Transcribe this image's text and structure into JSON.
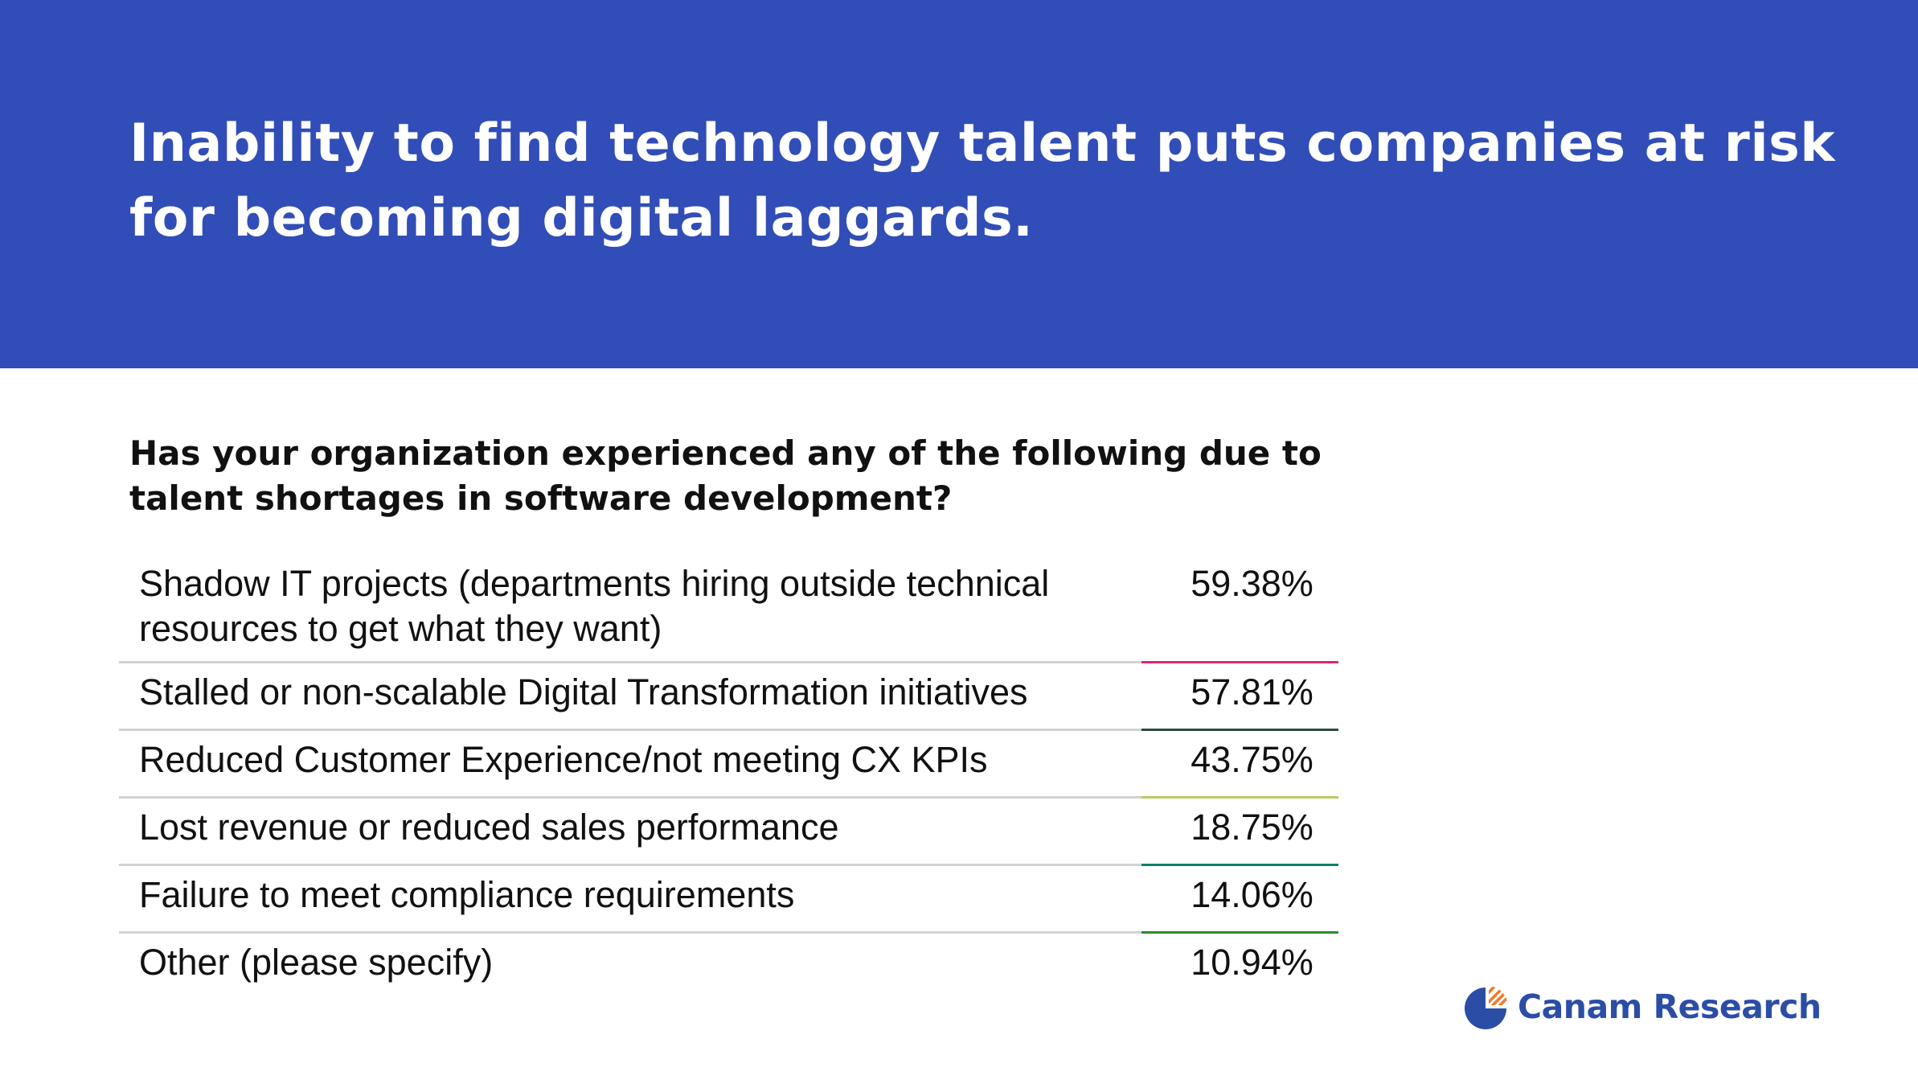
{
  "header": {
    "title": "Inability to find technology talent puts companies at risk for becoming digital laggards."
  },
  "question": "Has your organization experienced any of the following due to talent shortages in software development?",
  "chart_data": {
    "type": "table",
    "title": "Has your organization experienced any of the following due to talent shortages in software development?",
    "rows": [
      {
        "label": "Shadow IT projects (departments hiring outside technical resources to get what they want)",
        "value": "59.38%",
        "accent": "#e0267a"
      },
      {
        "label": "Stalled or non-scalable Digital Transformation initiatives",
        "value": "57.81%",
        "accent": "#2f4b3a"
      },
      {
        "label": "Reduced Customer Experience/not meeting CX KPIs",
        "value": "43.75%",
        "accent": "#b7cc64"
      },
      {
        "label": "Lost revenue or reduced sales performance",
        "value": "18.75%",
        "accent": "#0f7f6a"
      },
      {
        "label": "Failure to meet compliance requirements",
        "value": "14.06%",
        "accent": "#2f8a2f"
      },
      {
        "label": "Other (please specify)",
        "value": "10.94%",
        "accent": ""
      }
    ]
  },
  "logo": {
    "text": "Canam Research",
    "icon": "canam-pie-logo-icon",
    "colors": {
      "blue": "#2b4da6",
      "orange": "#f07a2c"
    }
  },
  "colors": {
    "header_bg": "#314db7",
    "divider": "#d2d2d2"
  }
}
